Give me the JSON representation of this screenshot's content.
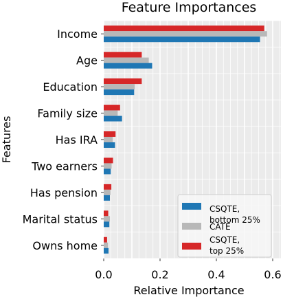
{
  "chart_data": {
    "type": "bar",
    "orientation": "horizontal",
    "title": "Feature Importances",
    "xlabel": "Relative Importance",
    "ylabel": "Features",
    "xlim": [
      0,
      0.6
    ],
    "xticks": [
      "0.0",
      "0.2",
      "0.4",
      "0.6"
    ],
    "xtick_values": [
      0.0,
      0.2,
      0.4,
      0.6
    ],
    "grid": true,
    "legend_position": "bottom-right",
    "categories": [
      "Income",
      "Age",
      "Education",
      "Family size",
      "Has IRA",
      "Two earners",
      "Has pension",
      "Marital status",
      "Owns home"
    ],
    "series": [
      {
        "name": "CSQTE, top 25%",
        "color": "#d62728",
        "values": [
          0.57,
          0.135,
          0.135,
          0.058,
          0.042,
          0.033,
          0.027,
          0.016,
          0.012
        ]
      },
      {
        "name": "CATE",
        "color": "#b8b8b8",
        "values": [
          0.58,
          0.16,
          0.11,
          0.05,
          0.032,
          0.028,
          0.024,
          0.022,
          0.015
        ]
      },
      {
        "name": "CSQTE, bottom 25%",
        "color": "#1f77b4",
        "values": [
          0.555,
          0.172,
          0.108,
          0.065,
          0.04,
          0.025,
          0.022,
          0.02,
          0.017
        ]
      }
    ],
    "legend": [
      {
        "label_lines": [
          "CSQTE,",
          "bottom 25%"
        ],
        "color": "#1f77b4"
      },
      {
        "label_lines": [
          "CATE"
        ],
        "color": "#b8b8b8"
      },
      {
        "label_lines": [
          "CSQTE,",
          "top 25%"
        ],
        "color": "#d62728"
      }
    ]
  }
}
